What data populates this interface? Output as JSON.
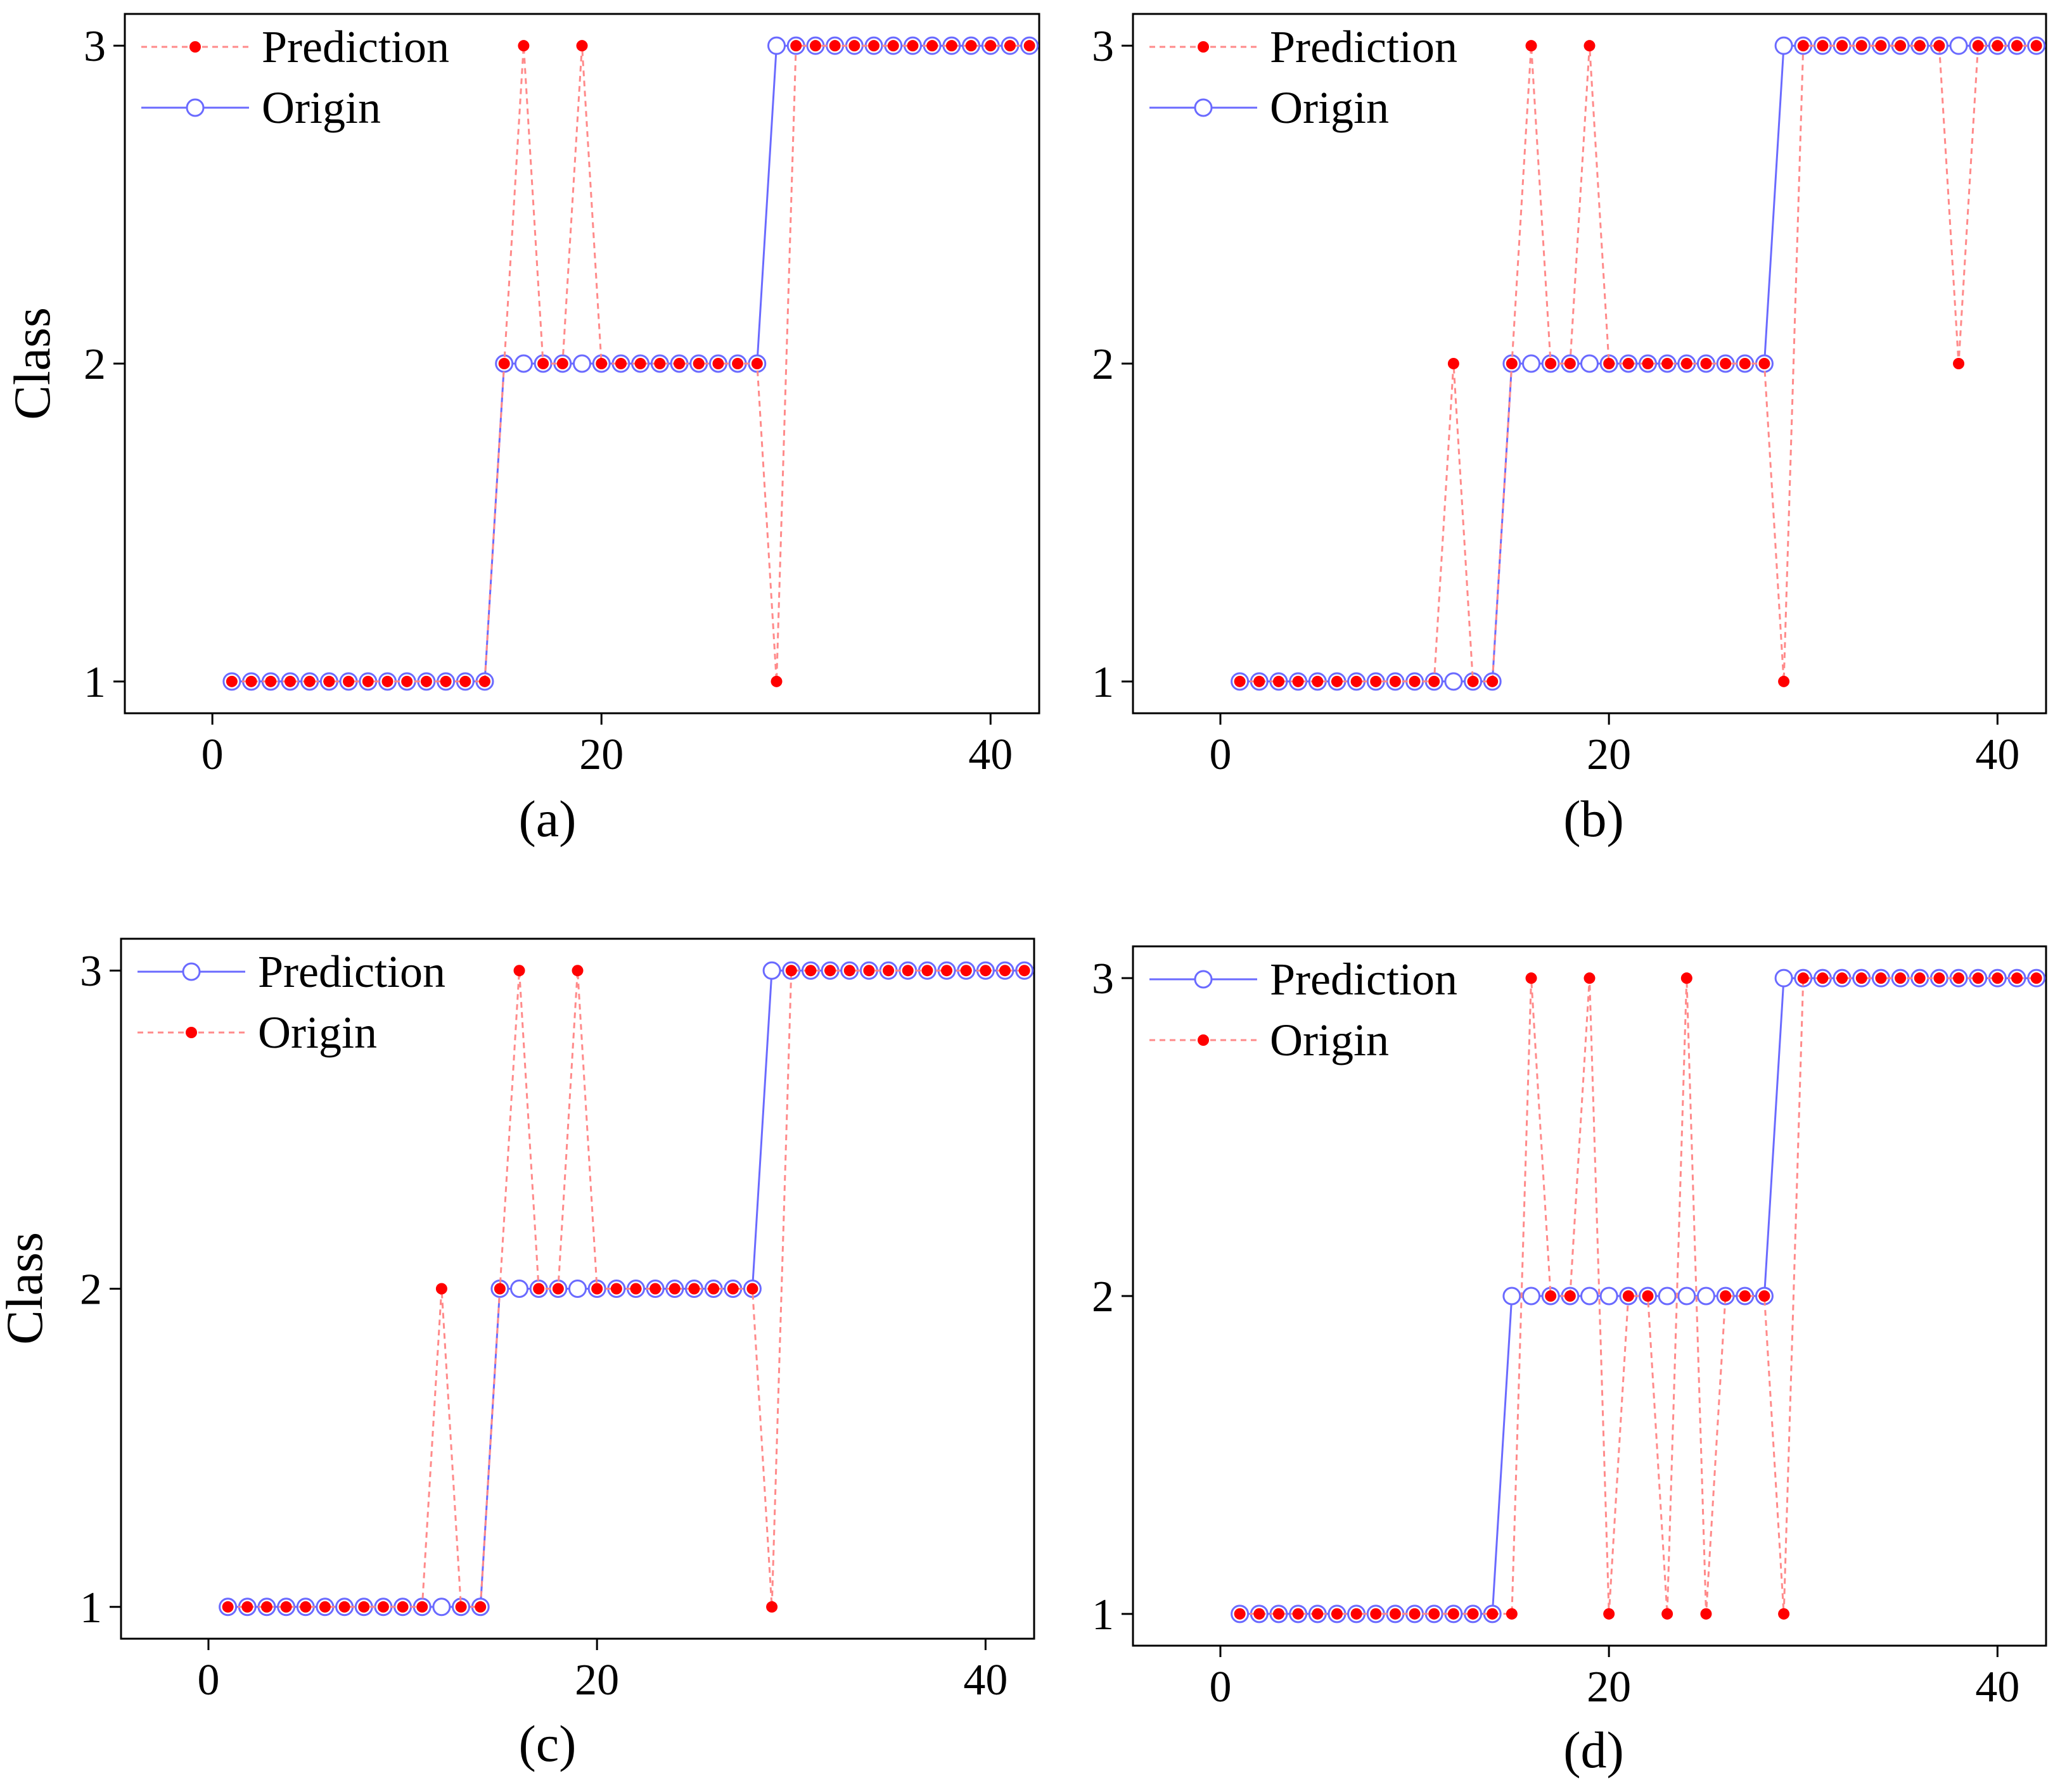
{
  "colors": {
    "open_blue": "#6a6aff",
    "dot_red": "#ff0000",
    "dash_red": "#ff8a8a",
    "axis": "#000000"
  },
  "chart_data": [
    {
      "type": "line",
      "caption": "(a)",
      "ylabel": "Class",
      "xlim": [
        -4.5,
        42.5
      ],
      "ylim": [
        0.9,
        3.1
      ],
      "xticks": [
        0,
        20,
        40
      ],
      "yticks": [
        1,
        2,
        3
      ],
      "legend_position": "top-left",
      "legend": [
        {
          "label": "Prediction",
          "style": "dashed-filled"
        },
        {
          "label": "Origin",
          "style": "solid-open"
        }
      ],
      "x": [
        1,
        2,
        3,
        4,
        5,
        6,
        7,
        8,
        9,
        10,
        11,
        12,
        13,
        14,
        15,
        16,
        17,
        18,
        19,
        20,
        21,
        22,
        23,
        24,
        25,
        26,
        27,
        28,
        29,
        30,
        31,
        32,
        33,
        34,
        35,
        36,
        37,
        38,
        39,
        40,
        41,
        42
      ],
      "series": [
        {
          "name": "Prediction",
          "style": "dashed-filled",
          "values": [
            1,
            1,
            1,
            1,
            1,
            1,
            1,
            1,
            1,
            1,
            1,
            1,
            1,
            1,
            2,
            3,
            2,
            2,
            3,
            2,
            2,
            2,
            2,
            2,
            2,
            2,
            2,
            2,
            1,
            3,
            3,
            3,
            3,
            3,
            3,
            3,
            3,
            3,
            3,
            3,
            3,
            3
          ]
        },
        {
          "name": "Origin",
          "style": "solid-open",
          "values": [
            1,
            1,
            1,
            1,
            1,
            1,
            1,
            1,
            1,
            1,
            1,
            1,
            1,
            1,
            2,
            2,
            2,
            2,
            2,
            2,
            2,
            2,
            2,
            2,
            2,
            2,
            2,
            2,
            3,
            3,
            3,
            3,
            3,
            3,
            3,
            3,
            3,
            3,
            3,
            3,
            3,
            3
          ]
        }
      ]
    },
    {
      "type": "line",
      "caption": "(b)",
      "ylabel": "",
      "xlim": [
        -4.5,
        42.5
      ],
      "ylim": [
        0.9,
        3.1
      ],
      "xticks": [
        0,
        20,
        40
      ],
      "yticks": [
        1,
        2,
        3
      ],
      "legend_position": "top-left",
      "legend": [
        {
          "label": "Prediction",
          "style": "dashed-filled"
        },
        {
          "label": "Origin",
          "style": "solid-open"
        }
      ],
      "x": [
        1,
        2,
        3,
        4,
        5,
        6,
        7,
        8,
        9,
        10,
        11,
        12,
        13,
        14,
        15,
        16,
        17,
        18,
        19,
        20,
        21,
        22,
        23,
        24,
        25,
        26,
        27,
        28,
        29,
        30,
        31,
        32,
        33,
        34,
        35,
        36,
        37,
        38,
        39,
        40,
        41,
        42
      ],
      "series": [
        {
          "name": "Prediction",
          "style": "dashed-filled",
          "values": [
            1,
            1,
            1,
            1,
            1,
            1,
            1,
            1,
            1,
            1,
            1,
            2,
            1,
            1,
            2,
            3,
            2,
            2,
            3,
            2,
            2,
            2,
            2,
            2,
            2,
            2,
            2,
            2,
            1,
            3,
            3,
            3,
            3,
            3,
            3,
            3,
            3,
            2,
            3,
            3,
            3,
            3
          ]
        },
        {
          "name": "Origin",
          "style": "solid-open",
          "values": [
            1,
            1,
            1,
            1,
            1,
            1,
            1,
            1,
            1,
            1,
            1,
            1,
            1,
            1,
            2,
            2,
            2,
            2,
            2,
            2,
            2,
            2,
            2,
            2,
            2,
            2,
            2,
            2,
            3,
            3,
            3,
            3,
            3,
            3,
            3,
            3,
            3,
            3,
            3,
            3,
            3,
            3
          ]
        }
      ]
    },
    {
      "type": "line",
      "caption": "(c)",
      "ylabel": "Class",
      "xlim": [
        -4.5,
        42.5
      ],
      "ylim": [
        0.9,
        3.1
      ],
      "xticks": [
        0,
        20,
        40
      ],
      "yticks": [
        1,
        2,
        3
      ],
      "legend_position": "top-left",
      "legend": [
        {
          "label": "Prediction",
          "style": "solid-open"
        },
        {
          "label": "Origin",
          "style": "dashed-filled"
        }
      ],
      "x": [
        1,
        2,
        3,
        4,
        5,
        6,
        7,
        8,
        9,
        10,
        11,
        12,
        13,
        14,
        15,
        16,
        17,
        18,
        19,
        20,
        21,
        22,
        23,
        24,
        25,
        26,
        27,
        28,
        29,
        30,
        31,
        32,
        33,
        34,
        35,
        36,
        37,
        38,
        39,
        40,
        41,
        42
      ],
      "series": [
        {
          "name": "Prediction",
          "style": "solid-open",
          "values": [
            1,
            1,
            1,
            1,
            1,
            1,
            1,
            1,
            1,
            1,
            1,
            1,
            1,
            1,
            2,
            2,
            2,
            2,
            2,
            2,
            2,
            2,
            2,
            2,
            2,
            2,
            2,
            2,
            3,
            3,
            3,
            3,
            3,
            3,
            3,
            3,
            3,
            3,
            3,
            3,
            3,
            3
          ]
        },
        {
          "name": "Origin",
          "style": "dashed-filled",
          "values": [
            1,
            1,
            1,
            1,
            1,
            1,
            1,
            1,
            1,
            1,
            1,
            2,
            1,
            1,
            2,
            3,
            2,
            2,
            3,
            2,
            2,
            2,
            2,
            2,
            2,
            2,
            2,
            2,
            1,
            3,
            3,
            3,
            3,
            3,
            3,
            3,
            3,
            3,
            3,
            3,
            3,
            3
          ]
        }
      ]
    },
    {
      "type": "line",
      "caption": "(d)",
      "ylabel": "",
      "xlim": [
        -4.5,
        42.5
      ],
      "ylim": [
        0.9,
        3.1
      ],
      "xticks": [
        0,
        20,
        40
      ],
      "yticks": [
        1,
        2,
        3
      ],
      "legend_position": "top-left",
      "legend": [
        {
          "label": "Prediction",
          "style": "solid-open"
        },
        {
          "label": "Origin",
          "style": "dashed-filled"
        }
      ],
      "x": [
        1,
        2,
        3,
        4,
        5,
        6,
        7,
        8,
        9,
        10,
        11,
        12,
        13,
        14,
        15,
        16,
        17,
        18,
        19,
        20,
        21,
        22,
        23,
        24,
        25,
        26,
        27,
        28,
        29,
        30,
        31,
        32,
        33,
        34,
        35,
        36,
        37,
        38,
        39,
        40,
        41,
        42
      ],
      "series": [
        {
          "name": "Prediction",
          "style": "solid-open",
          "values": [
            1,
            1,
            1,
            1,
            1,
            1,
            1,
            1,
            1,
            1,
            1,
            1,
            1,
            1,
            2,
            2,
            2,
            2,
            2,
            2,
            2,
            2,
            2,
            2,
            2,
            2,
            2,
            2,
            3,
            3,
            3,
            3,
            3,
            3,
            3,
            3,
            3,
            3,
            3,
            3,
            3,
            3
          ]
        },
        {
          "name": "Origin",
          "style": "dashed-filled",
          "values": [
            1,
            1,
            1,
            1,
            1,
            1,
            1,
            1,
            1,
            1,
            1,
            1,
            1,
            1,
            1,
            3,
            2,
            2,
            3,
            1,
            2,
            2,
            1,
            3,
            1,
            2,
            2,
            2,
            1,
            3,
            3,
            3,
            3,
            3,
            3,
            3,
            3,
            3,
            3,
            3,
            3,
            3
          ]
        }
      ]
    }
  ]
}
